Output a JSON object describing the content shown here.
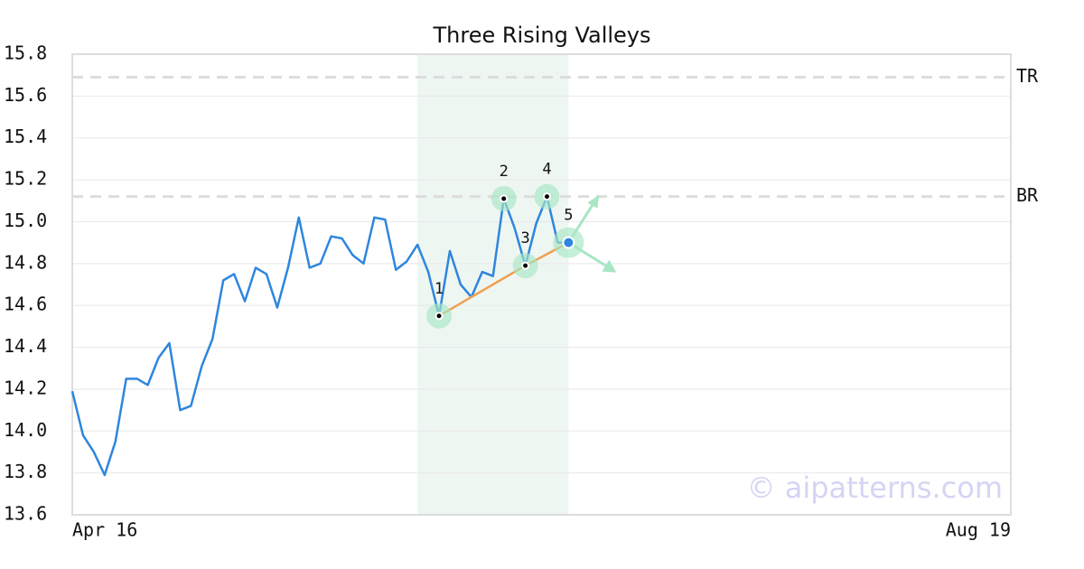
{
  "chart_data": {
    "type": "line",
    "title": "Three Rising Valleys",
    "categories": [
      "Apr 16",
      null,
      null,
      null,
      null,
      null,
      null,
      null,
      null,
      null,
      null,
      null,
      null,
      null,
      null,
      null,
      null,
      null,
      null,
      null,
      null,
      null,
      null,
      null,
      null,
      null,
      null,
      null,
      null,
      null,
      null,
      null,
      null,
      null,
      null,
      null,
      null,
      null,
      null,
      null,
      null,
      null,
      null,
      null,
      null,
      null,
      null,
      null,
      null,
      null,
      null,
      null,
      null,
      null,
      null,
      null,
      null,
      null,
      null,
      null,
      null,
      null,
      null,
      null,
      null,
      null,
      null,
      null,
      null,
      null,
      null,
      null,
      null,
      null,
      null,
      null,
      null,
      null,
      null,
      null,
      null,
      null,
      null,
      null,
      null,
      null,
      null,
      "Aug 19"
    ],
    "series": [
      {
        "color": "#2e86de",
        "values": [
          14.19,
          13.98,
          13.9,
          13.79,
          13.95,
          14.25,
          14.25,
          14.22,
          14.35,
          14.42,
          14.1,
          14.12,
          14.31,
          14.44,
          14.72,
          14.75,
          14.62,
          14.78,
          14.75,
          14.59,
          14.78,
          15.02,
          14.78,
          14.8,
          14.93,
          14.92,
          14.84,
          14.8,
          15.02,
          15.01,
          14.77,
          14.81,
          14.89,
          14.76,
          14.55,
          14.86,
          14.7,
          14.64,
          14.76,
          14.74,
          15.11,
          14.97,
          14.79,
          14.99,
          15.12,
          14.9,
          14.9,
          null,
          null,
          null,
          null,
          null,
          null,
          null,
          null,
          null,
          null,
          null,
          null,
          null,
          null,
          null,
          null,
          null,
          null,
          null,
          null,
          null,
          null,
          null,
          null,
          null,
          null,
          null,
          null,
          null,
          null,
          null,
          null,
          null,
          null,
          null,
          null,
          null,
          null,
          null,
          null,
          null
        ]
      }
    ],
    "ylim": [
      13.6,
      15.8
    ],
    "yticks": [
      13.6,
      13.8,
      {
        "value": 14.0,
        "label": "14.0"
      },
      14.2,
      14.4,
      14.6,
      14.8,
      {
        "value": 15.0,
        "label": "15.0"
      },
      15.2,
      15.4,
      15.6,
      15.8
    ],
    "grid": true,
    "reference_lines": [
      {
        "label": "TR",
        "value": 15.69
      },
      {
        "label": "BR",
        "value": 15.12
      }
    ],
    "highlight": [
      32,
      46
    ],
    "pattern": {
      "color": "#f0a050",
      "points": [
        {
          "label": "1",
          "x": 34,
          "value": 14.55
        },
        {
          "label": "2",
          "x": 40,
          "value": 15.11
        },
        {
          "label": "3",
          "x": 42,
          "value": 14.79
        },
        {
          "label": "4",
          "x": 44,
          "value": 15.12
        },
        {
          "label": "5",
          "x": 46,
          "value": 14.9
        }
      ]
    },
    "watermark": "© aipatterns.com"
  }
}
